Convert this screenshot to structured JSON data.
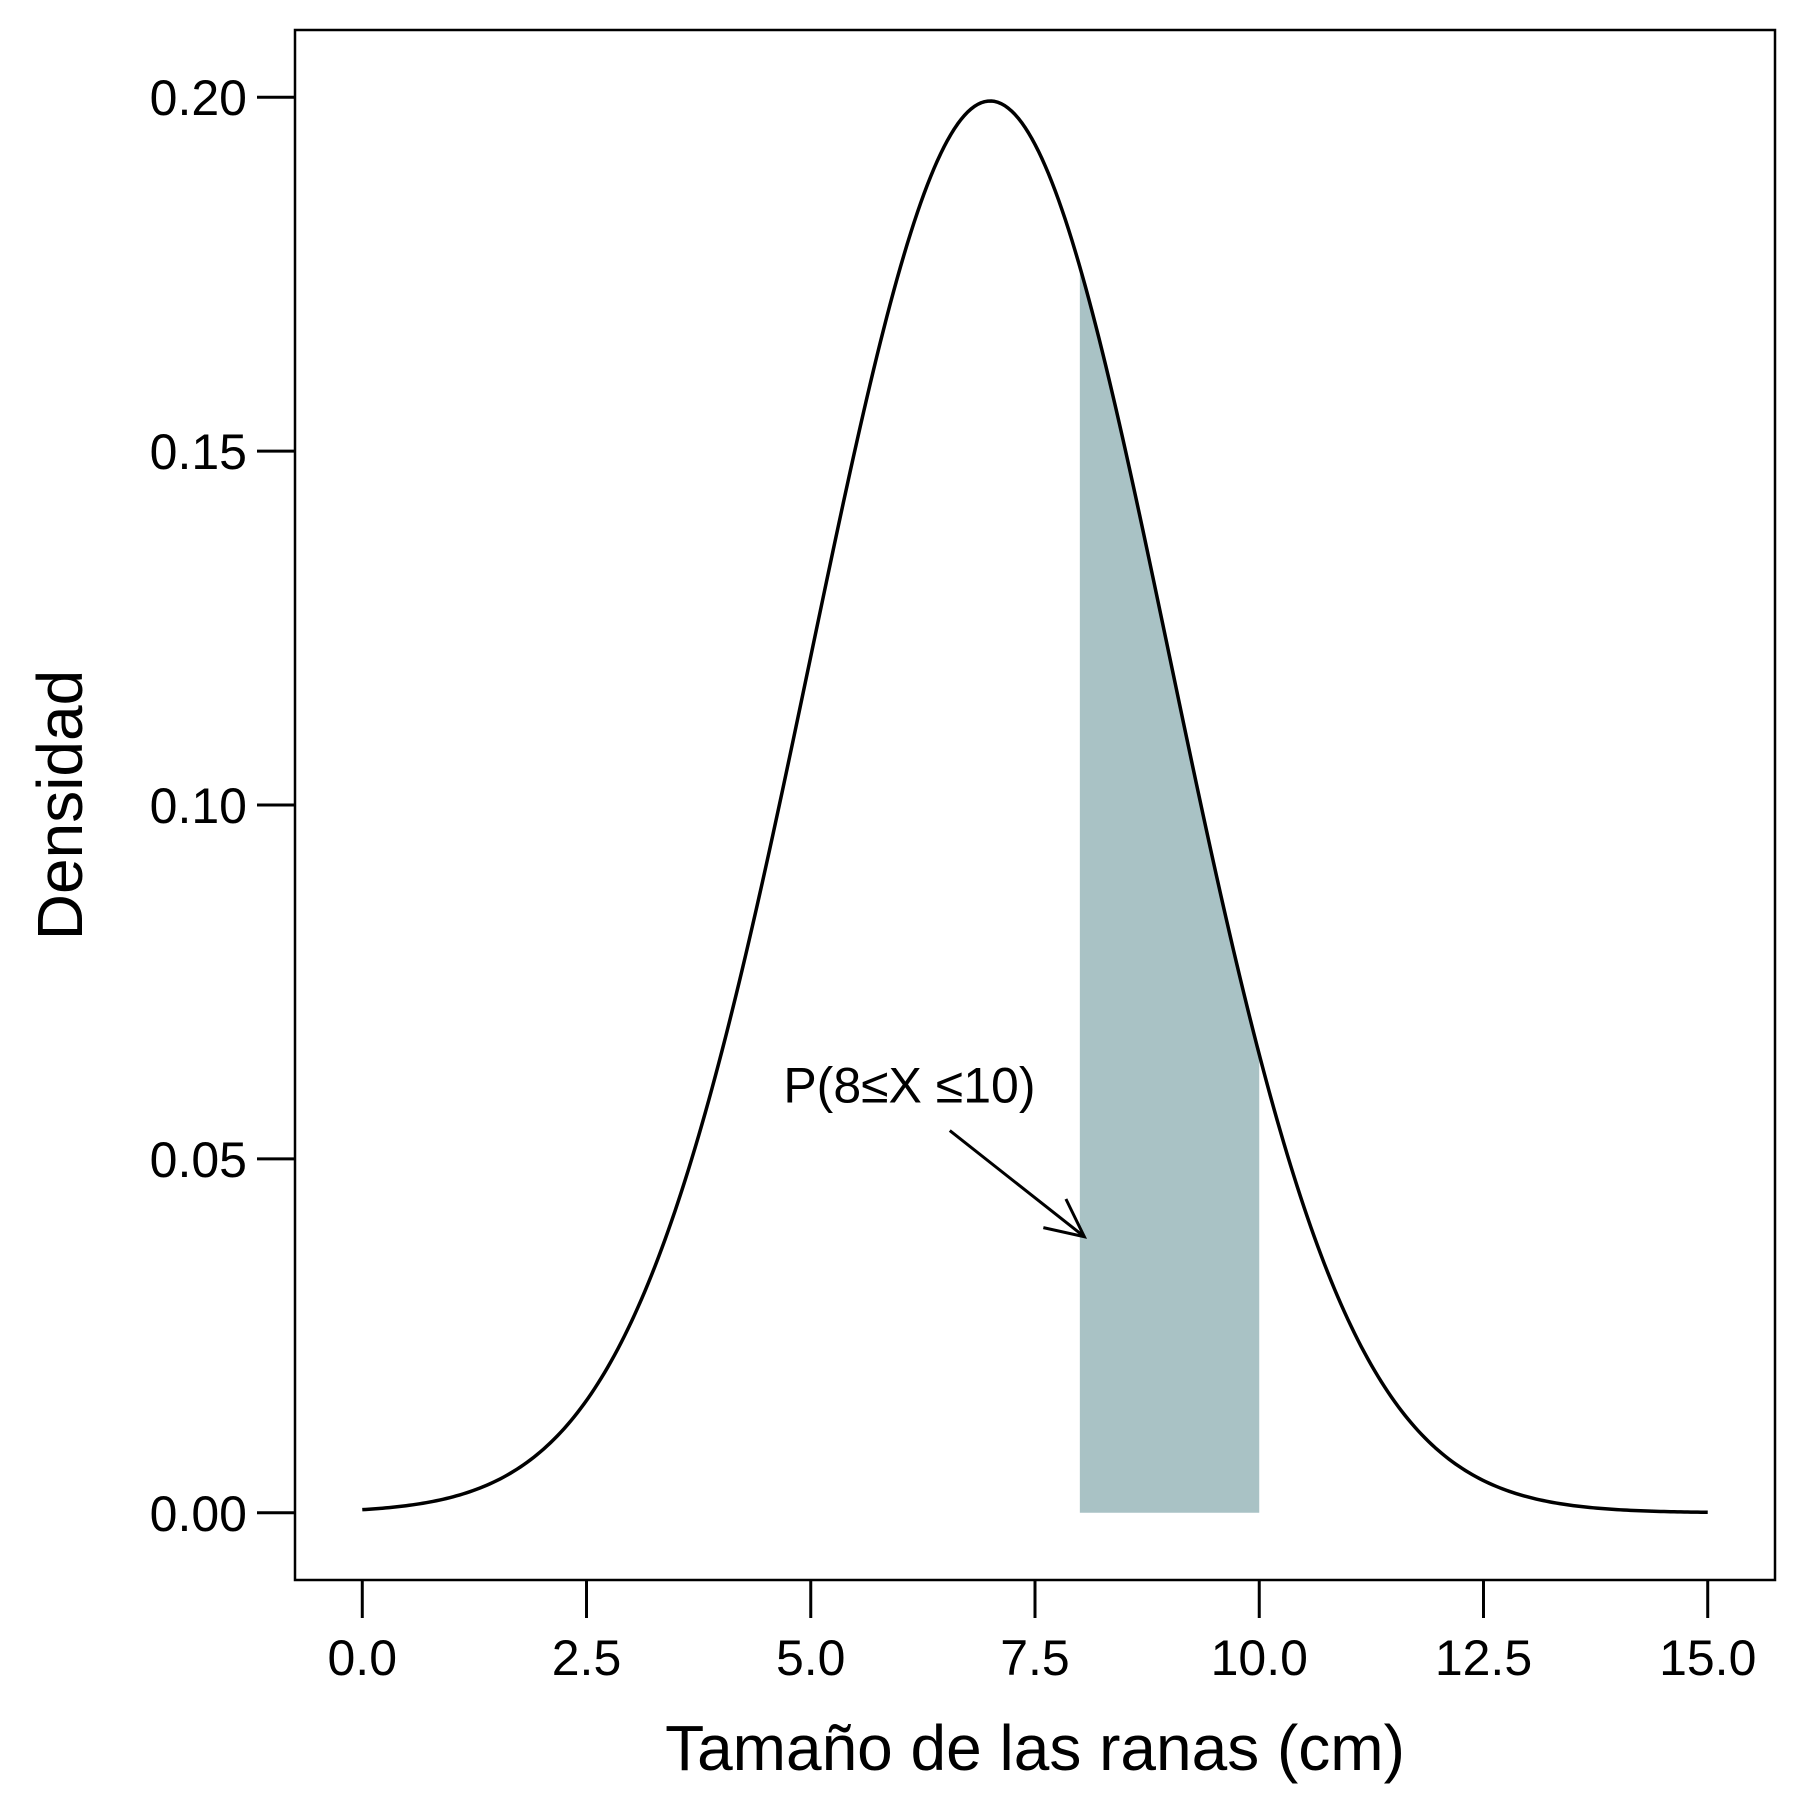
{
  "chart_data": {
    "type": "area",
    "title": "",
    "xlabel": "Tamaño de las ranas (cm)",
    "ylabel": "Densidad",
    "xlim": [
      -0.75,
      15.75
    ],
    "ylim": [
      -0.0095,
      0.2095
    ],
    "x_ticks": [
      0,
      2.5,
      5,
      7.5,
      10,
      12.5,
      15
    ],
    "x_tick_labels": [
      "0.0",
      "2.5",
      "5.0",
      "7.5",
      "10.0",
      "12.5",
      "15.0"
    ],
    "y_ticks": [
      0,
      0.05,
      0.1,
      0.15,
      0.2
    ],
    "y_tick_labels": [
      "0.00",
      "0.05",
      "0.10",
      "0.15",
      "0.20"
    ],
    "grid": false,
    "series": [
      {
        "kind": "density-curve",
        "distribution": "normal",
        "mean": 7,
        "sd": 2,
        "x_range": [
          0,
          15
        ],
        "color": "#000000"
      }
    ],
    "shaded_region": {
      "x_from": 8,
      "x_to": 10,
      "fill": "#a9c2c5"
    },
    "annotation": {
      "text": "P(8≤X ≤10)",
      "text_at": [
        6.1,
        0.058
      ],
      "arrow_from": [
        6.55,
        0.054
      ],
      "arrow_to": [
        8.05,
        0.039
      ]
    }
  }
}
